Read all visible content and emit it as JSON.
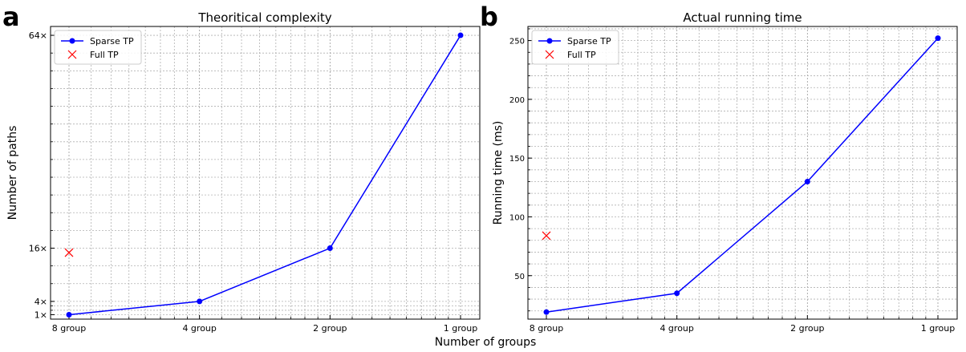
{
  "figure": {
    "shared_xlabel": "Number of groups"
  },
  "chart_data": [
    {
      "type": "line",
      "panel_label": "a",
      "title": "Theoritical complexity",
      "xlabel": "",
      "ylabel": "Number of paths",
      "x_scale": "log",
      "categories": [
        "8 group",
        "4 group",
        "2 group",
        "1 group"
      ],
      "x_values": [
        0.125,
        0.25,
        0.5,
        1
      ],
      "ylim": [
        0,
        66
      ],
      "y_ticks": [
        1,
        4,
        16,
        64
      ],
      "y_tick_labels": [
        "1×",
        "4×",
        "16×",
        "64×"
      ],
      "grid": true,
      "legend_position": "top-left",
      "series": [
        {
          "name": "Sparse TP",
          "marker": "circle",
          "color": "#0000ff",
          "values": [
            1,
            4,
            16,
            64
          ]
        },
        {
          "name": "Full TP",
          "marker": "x",
          "color": "#ff0000",
          "line": false,
          "x": [
            "8 group"
          ],
          "values": [
            15
          ]
        }
      ]
    },
    {
      "type": "line",
      "panel_label": "b",
      "title": "Actual running time",
      "xlabel": "",
      "ylabel": "Running time (ms)",
      "x_scale": "log",
      "categories": [
        "8 group",
        "4 group",
        "2 group",
        "1 group"
      ],
      "x_values": [
        0.125,
        0.25,
        0.5,
        1
      ],
      "ylim": [
        13,
        262
      ],
      "y_ticks": [
        50,
        100,
        150,
        200,
        250
      ],
      "y_tick_labels": [
        "50",
        "100",
        "150",
        "200",
        "250"
      ],
      "grid": true,
      "legend_position": "top-left",
      "series": [
        {
          "name": "Sparse TP",
          "marker": "circle",
          "color": "#0000ff",
          "values": [
            19,
            35,
            130,
            252
          ]
        },
        {
          "name": "Full TP",
          "marker": "x",
          "color": "#ff0000",
          "line": false,
          "x": [
            "8 group"
          ],
          "values": [
            84
          ]
        }
      ]
    }
  ]
}
